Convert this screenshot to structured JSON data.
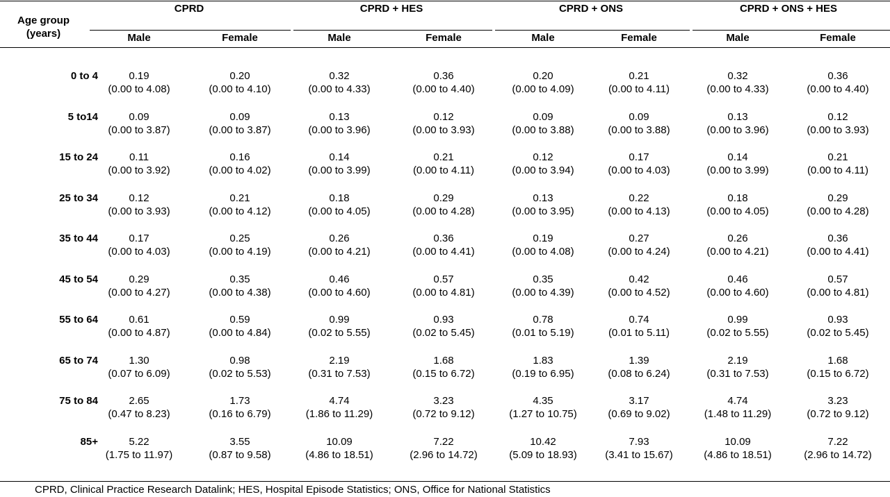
{
  "table": {
    "age_header_line1": "Age group",
    "age_header_line2": "(years)",
    "groups": [
      "CPRD",
      "CPRD + HES",
      "CPRD + ONS",
      "CPRD + ONS + HES"
    ],
    "sexes": [
      "Male",
      "Female"
    ],
    "rows": [
      {
        "age": "0 to 4",
        "cells": [
          [
            "0.19",
            "(0.00 to 4.08)"
          ],
          [
            "0.20",
            "(0.00 to 4.10)"
          ],
          [
            "0.32",
            "(0.00 to 4.33)"
          ],
          [
            "0.36",
            "(0.00 to 4.40)"
          ],
          [
            "0.20",
            "(0.00 to 4.09)"
          ],
          [
            "0.21",
            "(0.00 to 4.11)"
          ],
          [
            "0.32",
            "(0.00 to 4.33)"
          ],
          [
            "0.36",
            "(0.00 to 4.40)"
          ]
        ]
      },
      {
        "age": "5 to14",
        "cells": [
          [
            "0.09",
            "(0.00 to 3.87)"
          ],
          [
            "0.09",
            "(0.00 to 3.87)"
          ],
          [
            "0.13",
            "(0.00 to 3.96)"
          ],
          [
            "0.12",
            "(0.00 to 3.93)"
          ],
          [
            "0.09",
            "(0.00 to 3.88)"
          ],
          [
            "0.09",
            "(0.00 to 3.88)"
          ],
          [
            "0.13",
            "(0.00 to 3.96)"
          ],
          [
            "0.12",
            "(0.00 to 3.93)"
          ]
        ]
      },
      {
        "age": "15 to 24",
        "cells": [
          [
            "0.11",
            "(0.00 to 3.92)"
          ],
          [
            "0.16",
            "(0.00 to 4.02)"
          ],
          [
            "0.14",
            "(0.00 to 3.99)"
          ],
          [
            "0.21",
            "(0.00 to 4.11)"
          ],
          [
            "0.12",
            "(0.00 to 3.94)"
          ],
          [
            "0.17",
            "(0.00 to 4.03)"
          ],
          [
            "0.14",
            "(0.00 to 3.99)"
          ],
          [
            "0.21",
            "(0.00 to 4.11)"
          ]
        ]
      },
      {
        "age": "25 to 34",
        "cells": [
          [
            "0.12",
            "(0.00 to 3.93)"
          ],
          [
            "0.21",
            "(0.00 to 4.12)"
          ],
          [
            "0.18",
            "(0.00 to 4.05)"
          ],
          [
            "0.29",
            "(0.00 to 4.28)"
          ],
          [
            "0.13",
            "(0.00 to 3.95)"
          ],
          [
            "0.22",
            "(0.00 to 4.13)"
          ],
          [
            "0.18",
            "(0.00 to 4.05)"
          ],
          [
            "0.29",
            "(0.00 to 4.28)"
          ]
        ]
      },
      {
        "age": "35 to 44",
        "cells": [
          [
            "0.17",
            "(0.00 to 4.03)"
          ],
          [
            "0.25",
            "(0.00 to 4.19)"
          ],
          [
            "0.26",
            "(0.00 to 4.21)"
          ],
          [
            "0.36",
            "(0.00 to 4.41)"
          ],
          [
            "0.19",
            "(0.00 to 4.08)"
          ],
          [
            "0.27",
            "(0.00 to 4.24)"
          ],
          [
            "0.26",
            "(0.00 to 4.21)"
          ],
          [
            "0.36",
            "(0.00 to 4.41)"
          ]
        ]
      },
      {
        "age": "45 to 54",
        "cells": [
          [
            "0.29",
            "(0.00 to 4.27)"
          ],
          [
            "0.35",
            "(0.00 to 4.38)"
          ],
          [
            "0.46",
            "(0.00 to 4.60)"
          ],
          [
            "0.57",
            "(0.00 to 4.81)"
          ],
          [
            "0.35",
            "(0.00 to 4.39)"
          ],
          [
            "0.42",
            "(0.00 to 4.52)"
          ],
          [
            "0.46",
            "(0.00 to 4.60)"
          ],
          [
            "0.57",
            "(0.00 to 4.81)"
          ]
        ]
      },
      {
        "age": "55 to 64",
        "cells": [
          [
            "0.61",
            "(0.00 to 4.87)"
          ],
          [
            "0.59",
            "(0.00 to 4.84)"
          ],
          [
            "0.99",
            "(0.02 to 5.55)"
          ],
          [
            "0.93",
            "(0.02 to 5.45)"
          ],
          [
            "0.78",
            "(0.01 to 5.19)"
          ],
          [
            "0.74",
            "(0.01 to 5.11)"
          ],
          [
            "0.99",
            "(0.02 to 5.55)"
          ],
          [
            "0.93",
            "(0.02 to 5.45)"
          ]
        ]
      },
      {
        "age": "65 to 74",
        "cells": [
          [
            "1.30",
            "(0.07 to 6.09)"
          ],
          [
            "0.98",
            "(0.02 to 5.53)"
          ],
          [
            "2.19",
            "(0.31 to 7.53)"
          ],
          [
            "1.68",
            "(0.15 to 6.72)"
          ],
          [
            "1.83",
            "(0.19 to 6.95)"
          ],
          [
            "1.39",
            "(0.08 to 6.24)"
          ],
          [
            "2.19",
            "(0.31 to 7.53)"
          ],
          [
            "1.68",
            "(0.15 to 6.72)"
          ]
        ]
      },
      {
        "age": "75 to 84",
        "cells": [
          [
            "2.65",
            "(0.47 to 8.23)"
          ],
          [
            "1.73",
            "(0.16 to 6.79)"
          ],
          [
            "4.74",
            "(1.86 to 11.29)"
          ],
          [
            "3.23",
            "(0.72 to 9.12)"
          ],
          [
            "4.35",
            "(1.27 to 10.75)"
          ],
          [
            "3.17",
            "(0.69 to 9.02)"
          ],
          [
            "4.74",
            "(1.48 to 11.29)"
          ],
          [
            "3.23",
            "(0.72 to 9.12)"
          ]
        ]
      },
      {
        "age": "85+",
        "cells": [
          [
            "5.22",
            "(1.75 to 11.97)"
          ],
          [
            "3.55",
            "(0.87 to 9.58)"
          ],
          [
            "10.09",
            "(4.86 to 18.51)"
          ],
          [
            "7.22",
            "(2.96 to 14.72)"
          ],
          [
            "10.42",
            "(5.09 to 18.93)"
          ],
          [
            "7.93",
            "(3.41 to 15.67)"
          ],
          [
            "10.09",
            "(4.86 to 18.51)"
          ],
          [
            "7.22",
            "(2.96 to 14.72)"
          ]
        ]
      }
    ]
  },
  "footnote": "CPRD, Clinical Practice Research Datalink; HES, Hospital Episode Statistics; ONS, Office for National Statistics"
}
